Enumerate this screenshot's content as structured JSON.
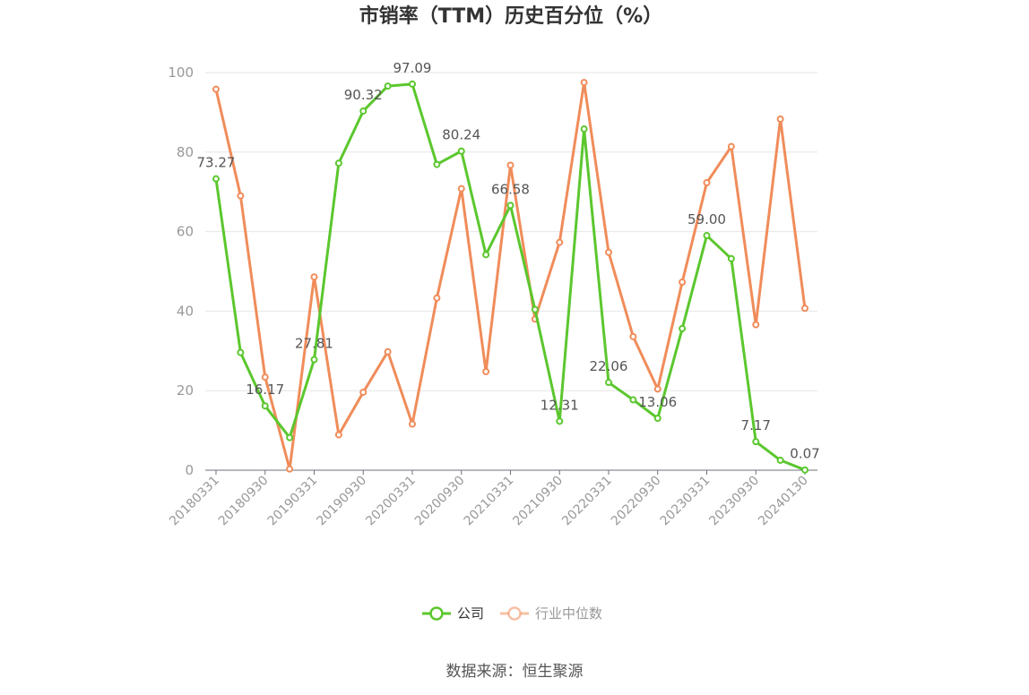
{
  "chart_data": {
    "type": "line",
    "title": "市销率（TTM）历史百分位（%）",
    "source": "数据来源：恒生聚源",
    "ylim": [
      0,
      100
    ],
    "yticks": [
      0,
      20,
      40,
      60,
      80,
      100
    ],
    "grid": true,
    "legend_position": "bottom",
    "x": [
      "20180331",
      "20180630",
      "20180930",
      "20181231",
      "20190331",
      "20190630",
      "20190930",
      "20191231",
      "20200331",
      "20200630",
      "20200930",
      "20201231",
      "20210331",
      "20210630",
      "20210930",
      "20211231",
      "20220331",
      "20220630",
      "20220930",
      "20221231",
      "20230331",
      "20230630",
      "20230930",
      "20231231",
      "20240130"
    ],
    "xtick_labels": [
      "20180331",
      "20180930",
      "20190331",
      "20190930",
      "20200331",
      "20200930",
      "20210331",
      "20210930",
      "20220331",
      "20220930",
      "20230331",
      "20230930",
      "20240130"
    ],
    "series": [
      {
        "name": "公司",
        "color": "#5bc72e",
        "values": [
          73.27,
          29.6,
          16.17,
          8.2,
          27.81,
          77.2,
          90.32,
          96.6,
          97.09,
          76.9,
          80.24,
          54.2,
          66.58,
          40.4,
          12.31,
          85.8,
          22.06,
          17.7,
          13.06,
          35.6,
          59.0,
          53.2,
          7.17,
          2.5,
          0.07
        ],
        "labeled": [
          {
            "i": 0,
            "text": "73.27"
          },
          {
            "i": 2,
            "text": "16.17"
          },
          {
            "i": 4,
            "text": "27.81"
          },
          {
            "i": 6,
            "text": "90.32"
          },
          {
            "i": 8,
            "text": "97.09"
          },
          {
            "i": 10,
            "text": "80.24"
          },
          {
            "i": 12,
            "text": "66.58"
          },
          {
            "i": 14,
            "text": "12.31"
          },
          {
            "i": 16,
            "text": "22.06"
          },
          {
            "i": 18,
            "text": "13.06"
          },
          {
            "i": 20,
            "text": "59.00"
          },
          {
            "i": 22,
            "text": "7.17"
          },
          {
            "i": 24,
            "text": "0.07"
          }
        ]
      },
      {
        "name": "行业中位数",
        "color": "#f08c5a",
        "values": [
          95.8,
          69.0,
          23.4,
          0.3,
          48.6,
          8.9,
          19.6,
          29.8,
          11.6,
          43.3,
          70.8,
          24.8,
          76.7,
          38.0,
          57.3,
          97.5,
          54.8,
          33.6,
          20.4,
          47.3,
          72.3,
          81.4,
          36.6,
          88.3,
          40.7
        ]
      }
    ]
  }
}
